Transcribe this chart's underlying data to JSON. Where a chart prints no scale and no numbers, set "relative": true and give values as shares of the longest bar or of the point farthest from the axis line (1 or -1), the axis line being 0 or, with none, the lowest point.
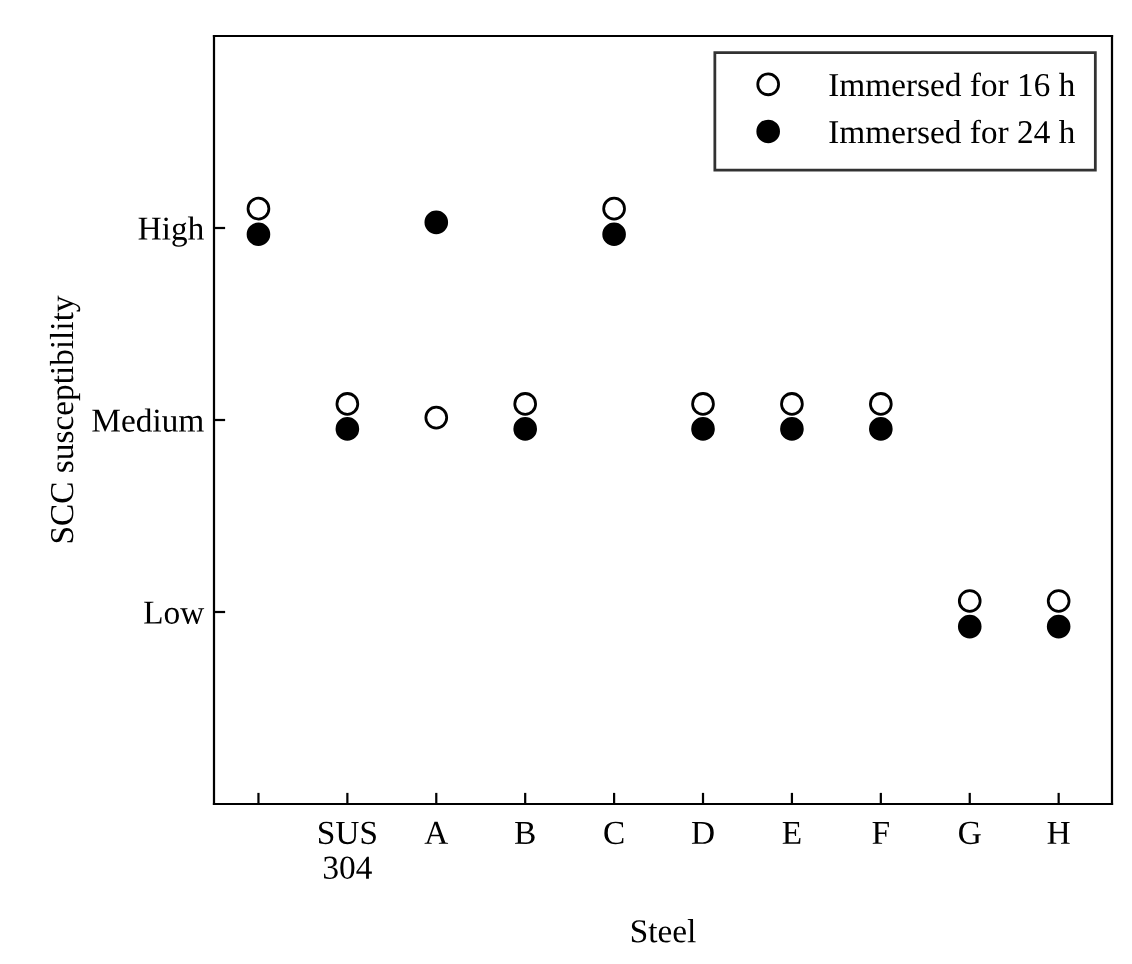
{
  "chart_data": {
    "type": "scatter",
    "xlabel": "Steel",
    "ylabel": "SCC susceptibility",
    "relative": true,
    "categories": [
      null,
      "SUS\n304",
      "A",
      "B",
      "C",
      "D",
      "E",
      "F",
      "G",
      "H"
    ],
    "annotations": [
      "Low",
      "Medium",
      "High"
    ],
    "series": [
      {
        "name": "Immersed for 16 h",
        "color": "#ffffff",
        "values": [
          1,
          0.672,
          0.649,
          0.672,
          1,
          0.672,
          0.672,
          0.672,
          0.341,
          0.341
        ]
      },
      {
        "name": "Immersed for 24 h",
        "color": "#000000",
        "values": [
          0.957,
          0.63,
          0.977,
          0.63,
          0.957,
          0.63,
          0.63,
          0.63,
          0.298,
          0.298
        ]
      }
    ],
    "marker": "circle",
    "legend": "top right",
    "grid": false
  }
}
